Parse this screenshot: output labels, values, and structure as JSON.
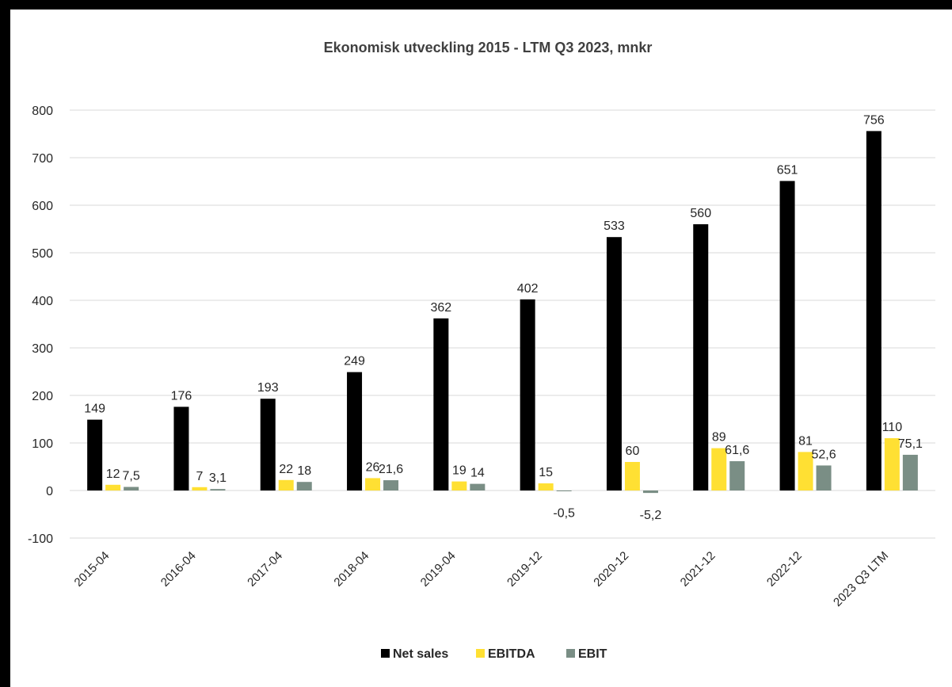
{
  "chart_data": {
    "type": "bar",
    "title": "Ekonomisk utveckling 2015 - LTM Q3 2023, mnkr",
    "xlabel": "",
    "ylabel": "",
    "ylim": [
      -100,
      800
    ],
    "yticks": [
      -100,
      0,
      100,
      200,
      300,
      400,
      500,
      600,
      700,
      800
    ],
    "ytick_labels": [
      "-100",
      "0",
      "100",
      "200",
      "300",
      "400",
      "500",
      "600",
      "700",
      "800"
    ],
    "grid": true,
    "legend_position": "bottom",
    "categories": [
      "2015-04",
      "2016-04",
      "2017-04",
      "2018-04",
      "2019-04",
      "2019-12",
      "2020-12",
      "2021-12",
      "2022-12",
      "2023 Q3 LTM"
    ],
    "series": [
      {
        "name": "Net sales",
        "color": "#000000",
        "values": [
          149,
          176,
          193,
          249,
          362,
          402,
          533,
          560,
          651,
          756
        ],
        "labels": [
          "149",
          "176",
          "193",
          "249",
          "362",
          "402",
          "533",
          "560",
          "651",
          "756"
        ]
      },
      {
        "name": "EBITDA",
        "color": "#FFE033",
        "values": [
          12,
          7,
          22,
          26,
          19,
          15,
          60,
          89,
          81,
          110
        ],
        "labels": [
          "12",
          "7",
          "22",
          "26",
          "19",
          "15",
          "60",
          "89",
          "81",
          "110"
        ]
      },
      {
        "name": "EBIT",
        "color": "#7A8E85",
        "values": [
          7.5,
          3.1,
          18,
          21.6,
          14,
          -0.5,
          -5.2,
          61.6,
          52.6,
          75.1
        ],
        "labels": [
          "7,5",
          "3,1",
          "18",
          "21,6",
          "14",
          "-0,5",
          "-5,2",
          "61,6",
          "52,6",
          "75,1"
        ]
      }
    ]
  }
}
